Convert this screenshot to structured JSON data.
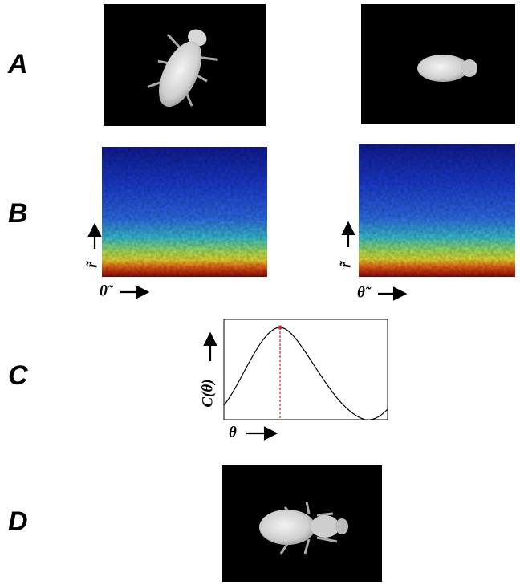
{
  "panels": {
    "A": {
      "label": "A"
    },
    "B": {
      "label": "B",
      "left": {
        "y_label": "r̃",
        "x_label": "θ̃"
      },
      "right": {
        "y_label": "r̃",
        "x_label": "θ̃"
      }
    },
    "C": {
      "label": "C",
      "y_label": "C(θ)",
      "x_label": "θ"
    },
    "D": {
      "label": "D"
    }
  }
}
